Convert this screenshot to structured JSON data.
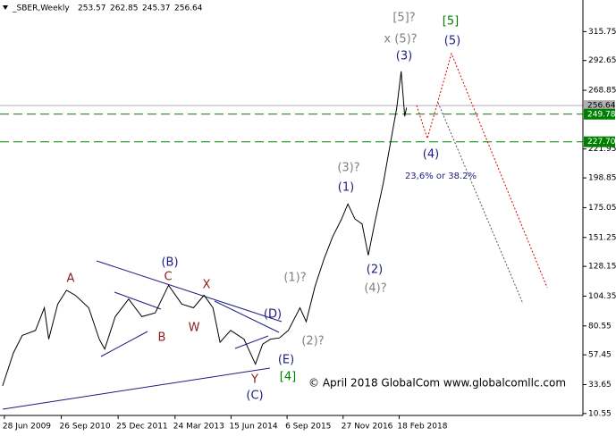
{
  "chart_data": {
    "type": "line",
    "header": {
      "symbol": "_SBER,Weekly",
      "open": 253.57,
      "high": 262.85,
      "low": 245.37,
      "close": 256.64
    },
    "x": [
      "2009-06-14",
      "2009-09-08",
      "2009-11-18",
      "2010-03-04",
      "2010-05-14",
      "2010-06-18",
      "2010-08-29",
      "2010-11-07",
      "2011-01-17",
      "2011-05-03",
      "2011-07-27",
      "2011-09-08",
      "2011-12-02",
      "2012-03-18",
      "2012-07-02",
      "2012-10-16",
      "2013-01-31",
      "2013-05-17",
      "2013-08-18",
      "2013-11-11",
      "2014-01-21",
      "2014-03-19",
      "2014-06-12",
      "2014-09-26",
      "2014-12-27",
      "2015-02-23",
      "2015-04-27",
      "2015-07-07",
      "2015-09-16",
      "2015-12-18",
      "2016-02-06",
      "2016-04-16",
      "2016-06-27",
      "2016-09-05",
      "2016-11-15",
      "2017-01-04",
      "2017-03-02",
      "2017-04-28",
      "2017-06-16",
      "2017-08-05",
      "2017-10-15",
      "2017-12-11",
      "2018-01-30",
      "2018-03-06",
      "2018-04-04",
      "2018-04-18"
    ],
    "series": [
      {
        "color": "#000000",
        "values": [
          32.6,
          59,
          73,
          77,
          95,
          70,
          98,
          109,
          105,
          95,
          70,
          62,
          88,
          102,
          88,
          91,
          113,
          98,
          95,
          105,
          95,
          67.5,
          77,
          70,
          50,
          66,
          70,
          71,
          77,
          95,
          84,
          112,
          134,
          152,
          166,
          178,
          166,
          162,
          137,
          162,
          195,
          227,
          255,
          284,
          248,
          255
        ]
      }
    ],
    "xlim": [
      "2009-05-24",
      "2022-02-27"
    ],
    "xticks": [
      {
        "value": "2009-06-28",
        "label": "28 Jun 2009"
      },
      {
        "value": "2010-09-26",
        "label": "26 Sep 2010"
      },
      {
        "value": "2011-12-25",
        "label": "25 Dec 2011"
      },
      {
        "value": "2013-03-24",
        "label": "24 Mar 2013"
      },
      {
        "value": "2014-06-15",
        "label": "15 Jun 2014"
      },
      {
        "value": "2015-09-06",
        "label": "6 Sep 2015"
      },
      {
        "value": "2016-11-27",
        "label": "27 Nov 2016"
      },
      {
        "value": "2018-02-18",
        "label": "18 Feb 2018"
      }
    ],
    "ylim": [
      9,
      341
    ],
    "yticks": [
      10.55,
      33.65,
      57.45,
      80.55,
      104.35,
      128.15,
      151.25,
      175.05,
      198.85,
      221.95,
      268.85,
      292.65,
      315.75
    ],
    "levels": [
      {
        "value": 256.64,
        "color": "#b0b0b0",
        "label_color": "#000000",
        "style": "solid"
      },
      {
        "value": 249.78,
        "color": "#008000",
        "label_color": "#ffffff",
        "style": "dashed"
      },
      {
        "value": {
          "value": 227.7,
          "label": "227.70"
        },
        "color": "#008000",
        "label_color": "#ffffff",
        "style": "dashed"
      }
    ],
    "annotations": [
      {
        "text": "[5]?",
        "color": "#808080"
      },
      {
        "text": "[5]",
        "color": "#008000"
      },
      {
        "text": "x (5)?",
        "color": "#808080"
      },
      {
        "text": "(5)",
        "color": "#1c1c80"
      },
      {
        "text": "(3)",
        "color": "#1c1c80"
      },
      {
        "text": "(3)?",
        "color": "#808080"
      },
      {
        "text": "(1)",
        "color": "#1c1c80"
      },
      {
        "text": "(4)",
        "color": "#1c1c80"
      },
      {
        "text": "23,6% or 38.2%",
        "color": "#1c1c80"
      },
      {
        "text": "(1)?",
        "color": "#808080"
      },
      {
        "text": "(2)",
        "color": "#1c1c80"
      },
      {
        "text": "(4)?",
        "color": "#808080"
      },
      {
        "text": "(2)?",
        "color": "#808080"
      },
      {
        "text": "(D)",
        "color": "#1c1c80"
      },
      {
        "text": "(E)",
        "color": "#1c1c80"
      },
      {
        "text": "[4]",
        "color": "#008000"
      },
      {
        "text": "Y",
        "color": "#8b1a1a"
      },
      {
        "text": "(C)",
        "color": "#1c1c80"
      },
      {
        "text": "(B)",
        "color": "#1c1c80"
      },
      {
        "text": "C",
        "color": "#8b1a1a"
      },
      {
        "text": "X",
        "color": "#8b1a1a"
      },
      {
        "text": "A",
        "color": "#8b1a1a"
      },
      {
        "text": "B",
        "color": "#8b1a1a"
      },
      {
        "text": "W",
        "color": "#8b1a1a"
      }
    ],
    "copyright": "© April 2018 GlobalCom www.globalcomllc.com"
  }
}
